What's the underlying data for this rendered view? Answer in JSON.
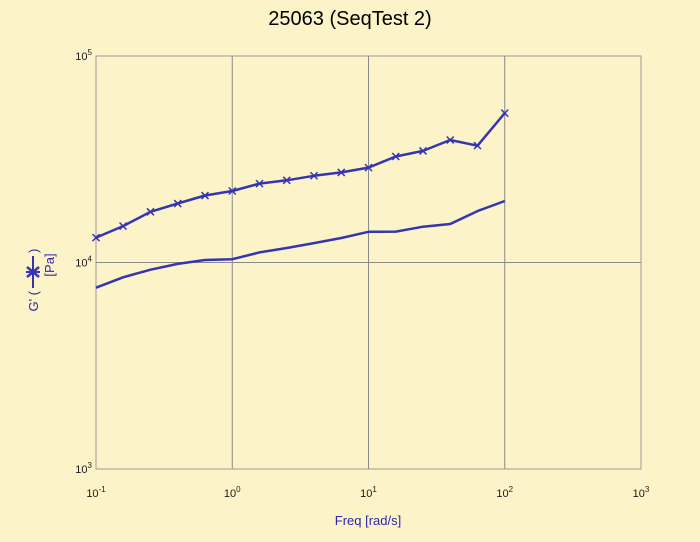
{
  "chart_data": {
    "type": "line",
    "title": "25063 (SeqTest 2)",
    "xlabel": "Freq [rad/s]",
    "ylabel": "G' (",
    "ylabel_close": ")",
    "ylabel_unit": "[Pa]",
    "xscale": "log",
    "yscale": "log",
    "xlim": [
      0.1,
      1000
    ],
    "ylim": [
      1000,
      100000
    ],
    "grid": true,
    "x_ticks": [
      {
        "base": "10",
        "exp": "-1",
        "value": 0.1
      },
      {
        "base": "10",
        "exp": "0",
        "value": 1
      },
      {
        "base": "10",
        "exp": "1",
        "value": 10
      },
      {
        "base": "10",
        "exp": "2",
        "value": 100
      },
      {
        "base": "10",
        "exp": "3",
        "value": 1000
      }
    ],
    "y_ticks": [
      {
        "base": "10",
        "exp": "3",
        "value": 1000
      },
      {
        "base": "10",
        "exp": "4",
        "value": 10000
      },
      {
        "base": "10",
        "exp": "5",
        "value": 100000
      }
    ],
    "colors": {
      "series": "#3535b0",
      "grid": "#8a8a8a",
      "frame": "#9a9a9a",
      "background": "#fdf3c9"
    },
    "series": [
      {
        "marker": "x",
        "x": [
          0.1,
          0.158,
          0.251,
          0.398,
          0.631,
          1.0,
          1.585,
          2.512,
          3.981,
          6.31,
          10.0,
          15.85,
          25.12,
          39.81,
          63.1,
          100.0
        ],
        "y": [
          13200,
          15000,
          17600,
          19300,
          21100,
          22200,
          24100,
          25000,
          26300,
          27300,
          28800,
          32600,
          34700,
          39200,
          36800,
          52900
        ]
      },
      {
        "marker": "none",
        "x": [
          0.1,
          0.158,
          0.251,
          0.398,
          0.631,
          1.0,
          1.585,
          2.512,
          3.981,
          6.31,
          10.0,
          15.85,
          25.12,
          39.81,
          63.1,
          100.0
        ],
        "y": [
          7550,
          8480,
          9230,
          9840,
          10280,
          10380,
          11190,
          11750,
          12410,
          13140,
          14080,
          14110,
          14900,
          15360,
          17740,
          19860
        ]
      }
    ]
  }
}
